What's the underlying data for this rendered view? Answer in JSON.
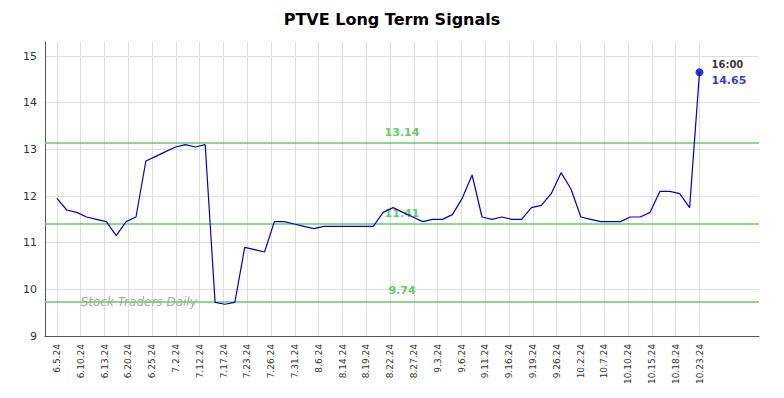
{
  "chart_data": {
    "type": "line",
    "title": "PTVE Long Term Signals",
    "watermark": "Stock Traders Daily",
    "color": "#0000cc",
    "grid": true,
    "x": [
      0,
      0.4154,
      0.8308,
      1.2462,
      1.6615,
      2.0769,
      2.4923,
      2.9077,
      3.3231,
      3.7385,
      4.1538,
      4.5692,
      4.9846,
      5.4,
      5.8154,
      6.2308,
      6.6462,
      7.0615,
      7.4769,
      7.8923,
      8.3077,
      8.7231,
      9.1385,
      9.5538,
      9.9692,
      10.3846,
      10.8,
      11.2154,
      11.6308,
      12.0462,
      12.4615,
      12.8769,
      13.2923,
      13.7077,
      14.1231,
      14.5385,
      14.9538,
      15.3692,
      15.7846,
      16.2,
      16.6154,
      17.0308,
      17.4462,
      17.8615,
      18.2769,
      18.6923,
      19.1077,
      19.5231,
      19.9385,
      20.3538,
      20.7692,
      21.1846,
      21.6,
      22.0154,
      22.4308,
      22.8462,
      23.2615,
      23.6769,
      24.0923,
      24.5077,
      24.9231,
      25.3385,
      25.7538,
      26.1692,
      26.5846,
      27
    ],
    "values": [
      11.95,
      11.7,
      11.65,
      11.55,
      11.5,
      11.45,
      11.15,
      11.45,
      11.55,
      12.75,
      12.85,
      12.95,
      13.05,
      13.1,
      13.05,
      13.1,
      9.72,
      9.68,
      9.72,
      10.9,
      10.85,
      10.8,
      11.45,
      11.45,
      11.4,
      11.35,
      11.3,
      11.35,
      11.35,
      11.35,
      11.35,
      11.35,
      11.35,
      11.65,
      11.75,
      11.65,
      11.55,
      11.45,
      11.5,
      11.5,
      11.6,
      11.95,
      12.45,
      11.55,
      11.5,
      11.55,
      11.5,
      11.5,
      11.75,
      11.8,
      12.05,
      12.5,
      12.15,
      11.55,
      11.5,
      11.45,
      11.45,
      11.45,
      11.55,
      11.55,
      11.65,
      12.1,
      12.1,
      12.05,
      11.75,
      14.65
    ],
    "xlim": [
      -0.5,
      29.5
    ],
    "xticks": [
      {
        "value": 0,
        "label": "6.5.24"
      },
      {
        "value": 1,
        "label": "6.10.24"
      },
      {
        "value": 2,
        "label": "6.13.24"
      },
      {
        "value": 3,
        "label": "6.20.24"
      },
      {
        "value": 4,
        "label": "6.25.24"
      },
      {
        "value": 5,
        "label": "7.2.24"
      },
      {
        "value": 6,
        "label": "7.12.24"
      },
      {
        "value": 7,
        "label": "7.17.24"
      },
      {
        "value": 8,
        "label": "7.23.24"
      },
      {
        "value": 9,
        "label": "7.26.24"
      },
      {
        "value": 10,
        "label": "7.31.24"
      },
      {
        "value": 11,
        "label": "8.6.24"
      },
      {
        "value": 12,
        "label": "8.14.24"
      },
      {
        "value": 13,
        "label": "8.19.24"
      },
      {
        "value": 14,
        "label": "8.22.24"
      },
      {
        "value": 15,
        "label": "8.27.24"
      },
      {
        "value": 16,
        "label": "9.3.24"
      },
      {
        "value": 17,
        "label": "9.6.24"
      },
      {
        "value": 18,
        "label": "9.11.24"
      },
      {
        "value": 19,
        "label": "9.16.24"
      },
      {
        "value": 20,
        "label": "9.19.24"
      },
      {
        "value": 21,
        "label": "9.26.24"
      },
      {
        "value": 22,
        "label": "10.2.24"
      },
      {
        "value": 23,
        "label": "10.7.24"
      },
      {
        "value": 24,
        "label": "10.10.24"
      },
      {
        "value": 25,
        "label": "10.15.24"
      },
      {
        "value": 26,
        "label": "10.18.24"
      },
      {
        "value": 27,
        "label": "10.23.24"
      }
    ],
    "ylim": [
      9,
      15.3
    ],
    "yticks": [
      9,
      10,
      11,
      12,
      13,
      14,
      15
    ],
    "hlines": [
      {
        "value": 13.14,
        "label": "13.14",
        "color": "#66cc66"
      },
      {
        "value": 11.41,
        "label": "11.41",
        "color": "#66cc66"
      },
      {
        "value": 9.74,
        "label": "9.74",
        "color": "#66cc66"
      }
    ],
    "last_price": {
      "x": 27,
      "value": 14.65,
      "label": "16:00"
    }
  }
}
